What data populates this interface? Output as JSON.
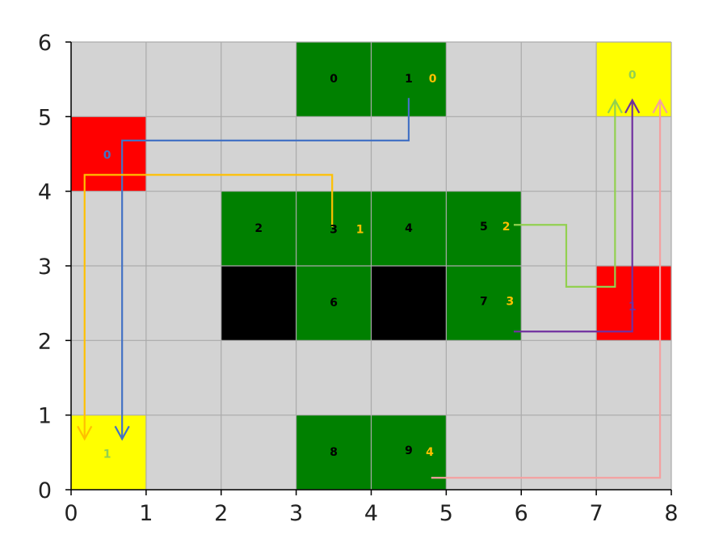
{
  "chart_data": {
    "type": "heatmap",
    "grid": {
      "cols": 8,
      "rows": 6,
      "gridlines": true
    },
    "xlim": [
      0,
      8
    ],
    "ylim": [
      0,
      6
    ],
    "xticks": [
      "0",
      "1",
      "2",
      "3",
      "4",
      "5",
      "6",
      "7",
      "8"
    ],
    "yticks": [
      "0",
      "1",
      "2",
      "3",
      "4",
      "5",
      "6"
    ],
    "colors": {
      "empty": "#d3d3d3",
      "node": "#008000",
      "obstacle": "#000000",
      "start": "#ff0000",
      "goal": "#ffff00",
      "gridline": "#aaaaaa"
    },
    "cells": [
      {
        "x": 3,
        "y": 5,
        "kind": "node"
      },
      {
        "x": 4,
        "y": 5,
        "kind": "node"
      },
      {
        "x": 2,
        "y": 3,
        "kind": "node"
      },
      {
        "x": 3,
        "y": 3,
        "kind": "node"
      },
      {
        "x": 4,
        "y": 3,
        "kind": "node"
      },
      {
        "x": 5,
        "y": 3,
        "kind": "node"
      },
      {
        "x": 3,
        "y": 2,
        "kind": "node"
      },
      {
        "x": 5,
        "y": 2,
        "kind": "node"
      },
      {
        "x": 3,
        "y": 0,
        "kind": "node"
      },
      {
        "x": 4,
        "y": 0,
        "kind": "node"
      },
      {
        "x": 2,
        "y": 2,
        "kind": "obstacle"
      },
      {
        "x": 4,
        "y": 2,
        "kind": "obstacle"
      },
      {
        "x": 0,
        "y": 4,
        "kind": "start"
      },
      {
        "x": 7,
        "y": 2,
        "kind": "start"
      },
      {
        "x": 7,
        "y": 5,
        "kind": "goal"
      },
      {
        "x": 0,
        "y": 0,
        "kind": "goal"
      }
    ],
    "labels": [
      {
        "text": "0",
        "x": 3.5,
        "y": 5.5,
        "color": "#000000"
      },
      {
        "text": "1",
        "x": 4.5,
        "y": 5.5,
        "color": "#000000"
      },
      {
        "text": "0",
        "x": 4.82,
        "y": 5.5,
        "color": "#ffc000"
      },
      {
        "text": "2",
        "x": 2.5,
        "y": 3.5,
        "color": "#000000"
      },
      {
        "text": "3",
        "x": 3.5,
        "y": 3.48,
        "color": "#000000"
      },
      {
        "text": "1",
        "x": 3.85,
        "y": 3.48,
        "color": "#ffc000"
      },
      {
        "text": "4",
        "x": 4.5,
        "y": 3.5,
        "color": "#000000"
      },
      {
        "text": "5",
        "x": 5.5,
        "y": 3.52,
        "color": "#000000"
      },
      {
        "text": "2",
        "x": 5.8,
        "y": 3.52,
        "color": "#ffc000"
      },
      {
        "text": "6",
        "x": 3.5,
        "y": 2.5,
        "color": "#000000"
      },
      {
        "text": "7",
        "x": 5.5,
        "y": 2.52,
        "color": "#000000"
      },
      {
        "text": "3",
        "x": 5.85,
        "y": 2.52,
        "color": "#ffc000"
      },
      {
        "text": "8",
        "x": 3.5,
        "y": 0.5,
        "color": "#000000"
      },
      {
        "text": "9",
        "x": 4.5,
        "y": 0.52,
        "color": "#000000"
      },
      {
        "text": "4",
        "x": 4.78,
        "y": 0.5,
        "color": "#ffc000"
      },
      {
        "text": "0",
        "x": 0.48,
        "y": 4.48,
        "color": "#4472c4"
      },
      {
        "text": "1",
        "x": 7.48,
        "y": 2.45,
        "color": "#7030a0"
      },
      {
        "text": "0",
        "x": 7.48,
        "y": 5.55,
        "color": "#92d050"
      },
      {
        "text": "1",
        "x": 0.48,
        "y": 0.47,
        "color": "#92d050"
      }
    ],
    "paths": [
      {
        "color": "#4472c4",
        "points": [
          [
            4.5,
            5.25
          ],
          [
            4.5,
            4.68
          ],
          [
            0.68,
            4.68
          ],
          [
            0.68,
            0.68
          ]
        ]
      },
      {
        "color": "#ffc000",
        "points": [
          [
            3.48,
            3.52
          ],
          [
            3.48,
            4.22
          ],
          [
            0.18,
            4.22
          ],
          [
            0.18,
            0.68
          ]
        ]
      },
      {
        "color": "#92d050",
        "points": [
          [
            5.9,
            3.55
          ],
          [
            6.6,
            3.55
          ],
          [
            6.6,
            2.72
          ],
          [
            7.25,
            2.72
          ],
          [
            7.25,
            5.22
          ]
        ]
      },
      {
        "color": "#7030a0",
        "points": [
          [
            5.9,
            2.12
          ],
          [
            7.48,
            2.12
          ],
          [
            7.48,
            5.22
          ]
        ]
      },
      {
        "color": "#f4a0a0",
        "points": [
          [
            4.8,
            0.16
          ],
          [
            7.85,
            0.16
          ],
          [
            7.85,
            5.22
          ]
        ]
      }
    ]
  }
}
